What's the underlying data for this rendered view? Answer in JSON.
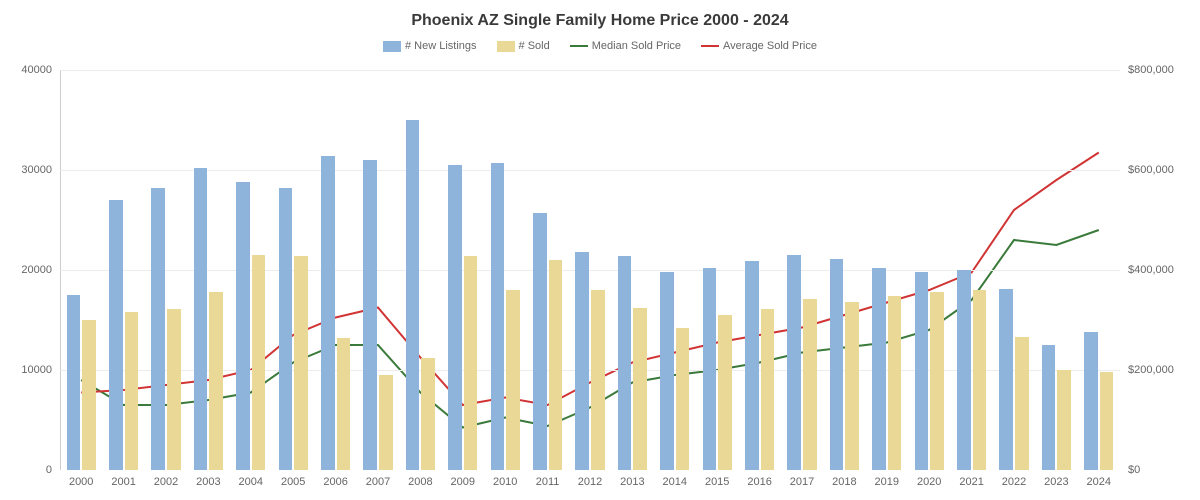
{
  "chart": {
    "type": "bar-and-line",
    "title": "Phoenix AZ Single Family Home Price 2000 - 2024",
    "title_fontsize": 16,
    "title_color": "#3a3a3a",
    "background_color": "#ffffff",
    "grid_color": "#ececec",
    "axis_color": "#cccccc",
    "label_color": "#666666",
    "label_fontsize": 11,
    "categories": [
      "2000",
      "2001",
      "2002",
      "2003",
      "2004",
      "2005",
      "2006",
      "2007",
      "2008",
      "2009",
      "2010",
      "2011",
      "2012",
      "2013",
      "2014",
      "2015",
      "2016",
      "2017",
      "2018",
      "2019",
      "2020",
      "2021",
      "2022",
      "2023",
      "2024"
    ],
    "y_left": {
      "min": 0,
      "max": 40000,
      "ticks": [
        0,
        10000,
        20000,
        30000,
        40000
      ],
      "tick_labels": [
        "0",
        "10000",
        "20000",
        "30000",
        "40000"
      ]
    },
    "y_right": {
      "min": 0,
      "max": 800000,
      "ticks": [
        0,
        200000,
        400000,
        600000,
        800000
      ],
      "tick_labels": [
        "$0",
        "$200,000",
        "$400,000",
        "$600,000",
        "$800,000"
      ]
    },
    "legend": [
      {
        "label": "# New Listings",
        "kind": "box",
        "color": "#8fb4db"
      },
      {
        "label": "# Sold",
        "kind": "box",
        "color": "#e9d896"
      },
      {
        "label": "Median Sold Price",
        "kind": "line",
        "color": "#3a7a3a"
      },
      {
        "label": "Average Sold Price",
        "kind": "line",
        "color": "#d13434"
      }
    ],
    "bar_colors": {
      "new_listings": "#8fb4db",
      "sold": "#e9d896"
    },
    "line_colors": {
      "median": "#3a7a3a",
      "average": "#d13434"
    },
    "line_width": 2,
    "bar_width_ratio": 0.32,
    "bar_gap_ratio": 0.05,
    "new_listings": [
      17500,
      27000,
      28200,
      30200,
      28800,
      28200,
      31400,
      31000,
      35000,
      30500,
      30700,
      25700,
      21800,
      21400,
      19800,
      20200,
      20900,
      21500,
      21100,
      20200,
      19800,
      20000,
      18100,
      12500,
      13800
    ],
    "sold": [
      15000,
      15800,
      16100,
      17800,
      21500,
      21400,
      13200,
      9500,
      11200,
      21400,
      18000,
      21000,
      18000,
      16200,
      14200,
      15500,
      16100,
      17100,
      16800,
      17400,
      17800,
      18000,
      13300,
      10000,
      9800
    ],
    "median_price": [
      180000,
      130000,
      130000,
      140000,
      155000,
      215000,
      250000,
      250000,
      155000,
      85000,
      105000,
      88000,
      125000,
      175000,
      190000,
      200000,
      215000,
      235000,
      245000,
      255000,
      280000,
      340000,
      460000,
      450000,
      480000
    ],
    "average_price": [
      155000,
      160000,
      170000,
      180000,
      200000,
      270000,
      305000,
      325000,
      225000,
      130000,
      145000,
      130000,
      175000,
      215000,
      235000,
      255000,
      270000,
      285000,
      310000,
      335000,
      360000,
      395000,
      520000,
      580000,
      635000
    ]
  }
}
